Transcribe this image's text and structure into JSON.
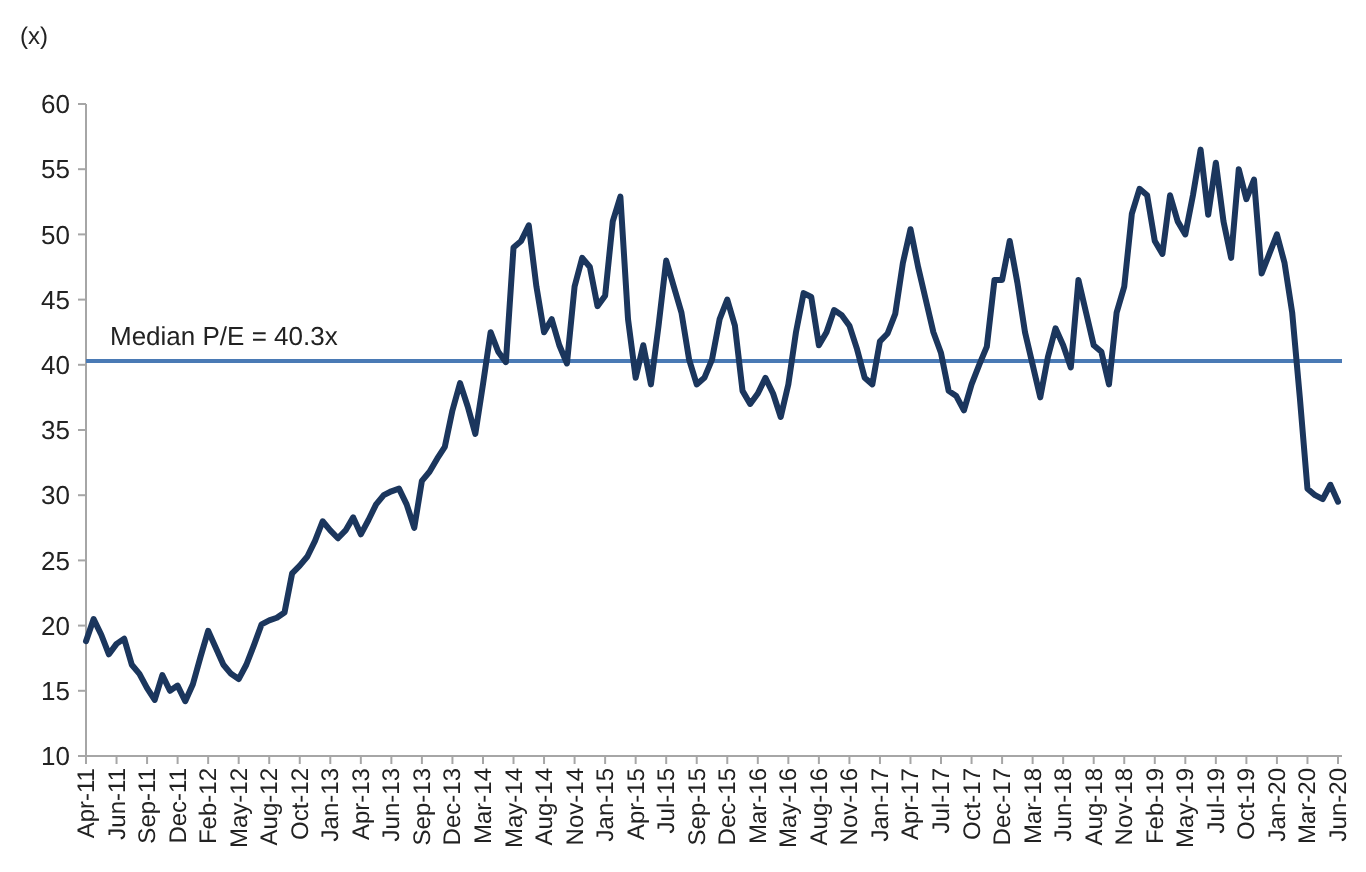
{
  "chart_data": {
    "type": "line",
    "ylabel": "(x)",
    "categories": [
      "Apr-11",
      null,
      null,
      null,
      "Jun-11",
      null,
      null,
      null,
      "Sep-11",
      null,
      null,
      null,
      "Dec-11",
      null,
      null,
      null,
      "Feb-12",
      null,
      null,
      null,
      "May-12",
      null,
      null,
      null,
      "Aug-12",
      null,
      null,
      null,
      "Oct-12",
      null,
      null,
      null,
      "Jan-13",
      null,
      null,
      null,
      "Apr-13",
      null,
      null,
      null,
      "Jun-13",
      null,
      null,
      null,
      "Sep-13",
      null,
      null,
      null,
      "Dec-13",
      null,
      null,
      null,
      "Mar-14",
      null,
      null,
      null,
      "May-14",
      null,
      null,
      null,
      "Aug-14",
      null,
      null,
      null,
      "Nov-14",
      null,
      null,
      null,
      "Jan-15",
      null,
      null,
      null,
      "Apr-15",
      null,
      null,
      null,
      "Jul-15",
      null,
      null,
      null,
      "Sep-15",
      null,
      null,
      null,
      "Dec-15",
      null,
      null,
      null,
      "Mar-16",
      null,
      null,
      null,
      "May-16",
      null,
      null,
      null,
      "Aug-16",
      null,
      null,
      null,
      "Nov-16",
      null,
      null,
      null,
      "Jan-17",
      null,
      null,
      null,
      "Apr-17",
      null,
      null,
      null,
      "Jul-17",
      null,
      null,
      null,
      "Oct-17",
      null,
      null,
      null,
      "Dec-17",
      null,
      null,
      null,
      "Mar-18",
      null,
      null,
      null,
      "Jun-18",
      null,
      null,
      null,
      "Aug-18",
      null,
      null,
      null,
      "Nov-18",
      null,
      null,
      null,
      "Feb-19",
      null,
      null,
      null,
      "May-19",
      null,
      null,
      null,
      "Jul-19",
      null,
      null,
      null,
      "Oct-19",
      null,
      null,
      null,
      "Jan-20",
      null,
      null,
      null,
      "Mar-20",
      null,
      null,
      null,
      "Jun-20"
    ],
    "series": [
      {
        "color": "#1b365d",
        "values": [
          18.8,
          20.5,
          19.3,
          17.8,
          18.6,
          19.0,
          17.0,
          16.3,
          15.2,
          14.3,
          16.2,
          15.0,
          15.4,
          14.2,
          15.5,
          17.6,
          19.6,
          18.3,
          17.0,
          16.3,
          15.9,
          17.0,
          18.5,
          20.1,
          20.4,
          20.6,
          21.0,
          24.0,
          24.6,
          25.3,
          26.5,
          28.0,
          27.3,
          26.7,
          27.3,
          28.3,
          27.0,
          28.1,
          29.3,
          30.0,
          30.3,
          30.5,
          29.3,
          27.5,
          31.1,
          31.8,
          32.8,
          33.7,
          36.5,
          38.6,
          36.8,
          34.7,
          38.5,
          42.5,
          41.0,
          40.2,
          49.0,
          49.5,
          50.7,
          46.0,
          42.5,
          43.5,
          41.5,
          40.1,
          46.0,
          48.2,
          47.5,
          44.5,
          45.3,
          51.0,
          52.9,
          43.5,
          39.0,
          41.5,
          38.5,
          43.0,
          48.0,
          46.0,
          44.0,
          40.4,
          38.5,
          39.0,
          40.4,
          43.5,
          45.0,
          43.0,
          38.0,
          37.0,
          37.8,
          39.0,
          37.8,
          36.0,
          38.5,
          42.5,
          45.5,
          45.2,
          41.5,
          42.5,
          44.2,
          43.8,
          43.0,
          41.2,
          39.0,
          38.5,
          41.8,
          42.4,
          43.9,
          47.8,
          50.4,
          47.5,
          45.0,
          42.5,
          40.9,
          38.0,
          37.6,
          36.5,
          38.5,
          40.0,
          41.4,
          46.5,
          46.5,
          49.5,
          46.3,
          42.5,
          40.0,
          37.5,
          40.6,
          42.8,
          41.5,
          39.8,
          46.5,
          44.0,
          41.5,
          41.0,
          38.5,
          44.0,
          46.0,
          51.6,
          53.5,
          53.0,
          49.5,
          48.5,
          53.0,
          51.0,
          50.0,
          53.0,
          56.5,
          51.5,
          55.5,
          51.0,
          48.2,
          55.0,
          52.7,
          54.2,
          47.0,
          48.5,
          50.0,
          47.8,
          44.0,
          37.5,
          30.5,
          30.0,
          29.7,
          30.8,
          29.5
        ]
      }
    ],
    "ylim": [
      10,
      60
    ],
    "yticks": [
      10,
      15,
      20,
      25,
      30,
      35,
      40,
      45,
      50,
      55,
      60
    ],
    "grid": false,
    "ref_lines": [
      {
        "axis": "y",
        "value": 40.3,
        "label": "Median P/E = 40.3x",
        "color": "#4a7ab5"
      }
    ]
  }
}
